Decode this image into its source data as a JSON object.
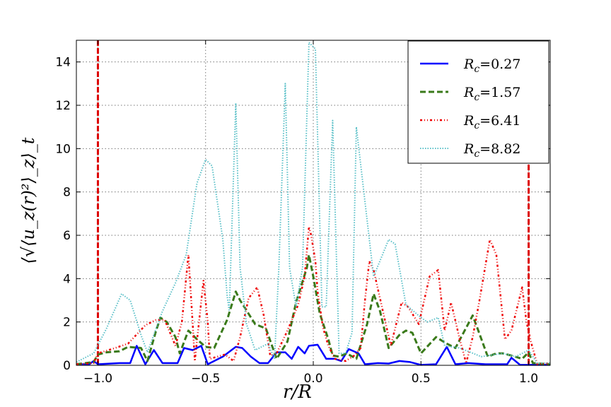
{
  "chart_data": {
    "type": "line",
    "xlabel": "r/R",
    "ylabel": "⟨√⟨u_z(r)²⟩_z⟩_t",
    "xlim": [
      -1.1,
      1.1
    ],
    "ylim": [
      0,
      15
    ],
    "xticks": [
      "−1.0",
      "−0.5",
      "0.0",
      "0.5",
      "1.0"
    ],
    "xtick_values": [
      -1.0,
      -0.5,
      0.0,
      0.5,
      1.0
    ],
    "yticks": [
      "0",
      "2",
      "4",
      "6",
      "8",
      "10",
      "12",
      "14"
    ],
    "ytick_values": [
      0,
      2,
      4,
      6,
      8,
      10,
      12,
      14
    ],
    "grid": true,
    "legend_position": "top-right",
    "vlines": [
      {
        "x": -1.0,
        "color": "#dd0000"
      },
      {
        "x": 1.0,
        "color": "#dd0000"
      }
    ],
    "series": [
      {
        "name": "R_c=0.27",
        "label_sym": "R",
        "label_sub": "c",
        "label_val": "=0.27",
        "color": "#0000ff",
        "style": "solid",
        "x": [
          -1.1,
          -1.04,
          -1.02,
          -1.0,
          -0.9,
          -0.85,
          -0.82,
          -0.78,
          -0.74,
          -0.7,
          -0.63,
          -0.6,
          -0.56,
          -0.52,
          -0.49,
          -0.42,
          -0.36,
          -0.33,
          -0.29,
          -0.25,
          -0.21,
          -0.17,
          -0.13,
          -0.1,
          -0.07,
          -0.04,
          -0.02,
          0.02,
          0.06,
          0.1,
          0.13,
          0.165,
          0.21,
          0.24,
          0.3,
          0.35,
          0.4,
          0.45,
          0.5,
          0.57,
          0.62,
          0.66,
          0.72,
          0.8,
          0.9,
          0.92,
          0.96,
          1.1
        ],
        "y": [
          0.05,
          0.05,
          0.2,
          0.05,
          0.1,
          0.1,
          0.9,
          0.05,
          0.7,
          0.1,
          0.1,
          0.8,
          0.7,
          0.9,
          0.05,
          0.4,
          0.85,
          0.8,
          0.4,
          0.1,
          0.1,
          0.6,
          0.6,
          0.3,
          0.85,
          0.55,
          0.9,
          0.95,
          0.3,
          0.3,
          0.2,
          0.75,
          0.55,
          0.05,
          0.1,
          0.08,
          0.2,
          0.15,
          0.02,
          0.05,
          0.85,
          0.05,
          0.1,
          0.05,
          0.05,
          0.35,
          0.02,
          0.02
        ]
      },
      {
        "name": "R_c=1.57",
        "label_sym": "R",
        "label_sub": "c",
        "label_val": "=1.57",
        "color": "#3a7a1a",
        "style": "dashed",
        "x": [
          -1.1,
          -1.02,
          -1.0,
          -0.96,
          -0.9,
          -0.86,
          -0.8,
          -0.77,
          -0.73,
          -0.71,
          -0.68,
          -0.64,
          -0.62,
          -0.58,
          -0.54,
          -0.5,
          -0.46,
          -0.4,
          -0.36,
          -0.34,
          -0.27,
          -0.22,
          -0.17,
          -0.12,
          -0.08,
          -0.03,
          -0.02,
          0.0,
          0.03,
          0.07,
          0.09,
          0.12,
          0.155,
          0.2,
          0.25,
          0.28,
          0.31,
          0.35,
          0.4,
          0.43,
          0.46,
          0.5,
          0.57,
          0.62,
          0.66,
          0.74,
          0.77,
          0.81,
          0.85,
          0.88,
          0.92,
          0.97,
          1.0,
          1.02,
          1.1
        ],
        "y": [
          0.05,
          0.15,
          0.5,
          0.6,
          0.65,
          0.85,
          0.8,
          0.2,
          1.6,
          2.2,
          2.0,
          1.3,
          0.55,
          1.6,
          1.2,
          0.85,
          0.8,
          2.1,
          3.4,
          3.0,
          1.9,
          1.7,
          0.3,
          1.1,
          2.9,
          4.5,
          5.1,
          4.1,
          2.4,
          1.2,
          0.45,
          0.4,
          0.55,
          0.3,
          1.9,
          3.3,
          2.5,
          0.8,
          1.4,
          1.6,
          1.5,
          0.55,
          1.3,
          1.0,
          0.8,
          2.3,
          1.5,
          0.4,
          0.55,
          0.55,
          0.45,
          0.3,
          0.6,
          0.1,
          0.05
        ]
      },
      {
        "name": "R_c=6.41",
        "label_sym": "R",
        "label_sub": "c",
        "label_val": "=6.41",
        "color": "#ee0000",
        "style": "dashdot",
        "x": [
          -1.1,
          -1.02,
          -1.0,
          -0.92,
          -0.86,
          -0.78,
          -0.73,
          -0.69,
          -0.64,
          -0.61,
          -0.58,
          -0.56,
          -0.55,
          -0.51,
          -0.49,
          -0.48,
          -0.41,
          -0.37,
          -0.34,
          -0.3,
          -0.26,
          -0.23,
          -0.2,
          -0.17,
          -0.12,
          -0.07,
          -0.04,
          -0.02,
          -0.01,
          0.01,
          0.02,
          0.045,
          0.07,
          0.1,
          0.15,
          0.19,
          0.22,
          0.24,
          0.26,
          0.28,
          0.33,
          0.36,
          0.41,
          0.44,
          0.49,
          0.54,
          0.58,
          0.61,
          0.64,
          0.68,
          0.71,
          0.74,
          0.77,
          0.82,
          0.85,
          0.89,
          0.92,
          0.97,
          0.99,
          1.01,
          1.04,
          1.1
        ],
        "y": [
          0.05,
          0.1,
          0.55,
          0.8,
          1.0,
          1.85,
          2.1,
          2.1,
          0.9,
          2.0,
          5.1,
          1.9,
          0.2,
          3.9,
          2.0,
          0.3,
          0.5,
          0.2,
          1.3,
          3.1,
          3.6,
          2.3,
          0.45,
          0.55,
          1.6,
          2.8,
          4.1,
          6.4,
          6.0,
          4.8,
          3.4,
          1.75,
          0.9,
          0.3,
          0.2,
          0.45,
          0.8,
          3.0,
          4.8,
          4.4,
          2.2,
          0.9,
          2.9,
          2.7,
          1.9,
          4.1,
          4.4,
          1.6,
          2.9,
          1.2,
          0.1,
          1.3,
          2.9,
          5.8,
          5.1,
          1.2,
          1.6,
          3.6,
          2.0,
          1.1,
          0.05,
          0.1
        ]
      },
      {
        "name": "R_c=8.82",
        "label_sym": "R",
        "label_sub": "c",
        "label_val": "=8.82",
        "color": "#5bc0c8",
        "style": "dotted",
        "x": [
          -1.1,
          -1.02,
          -0.96,
          -0.89,
          -0.85,
          -0.8,
          -0.77,
          -0.7,
          -0.64,
          -0.59,
          -0.54,
          -0.5,
          -0.47,
          -0.42,
          -0.4,
          -0.39,
          -0.36,
          -0.34,
          -0.31,
          -0.27,
          -0.21,
          -0.18,
          -0.16,
          -0.13,
          -0.11,
          -0.08,
          -0.05,
          -0.02,
          0.01,
          0.04,
          0.06,
          0.09,
          0.12,
          0.15,
          0.18,
          0.2,
          0.25,
          0.28,
          0.35,
          0.38,
          0.43,
          0.5,
          0.53,
          0.58,
          0.61,
          0.68,
          0.78,
          0.88,
          0.94,
          1.0,
          1.04,
          1.1
        ],
        "y": [
          0.15,
          0.55,
          1.7,
          3.3,
          3.0,
          1.4,
          0.6,
          2.5,
          3.8,
          5.1,
          8.4,
          9.5,
          9.2,
          5.8,
          3.2,
          2.5,
          12.1,
          4.5,
          1.9,
          0.7,
          1.0,
          0.3,
          4.5,
          13.0,
          4.5,
          2.7,
          4.5,
          14.9,
          14.6,
          2.7,
          2.7,
          11.3,
          0.55,
          0.55,
          1.5,
          11.0,
          6.7,
          4.1,
          5.8,
          5.6,
          2.8,
          2.2,
          2.0,
          2.2,
          0.9,
          0.8,
          0.4,
          0.55,
          0.4,
          0.7,
          0.1,
          0.1
        ]
      }
    ]
  }
}
